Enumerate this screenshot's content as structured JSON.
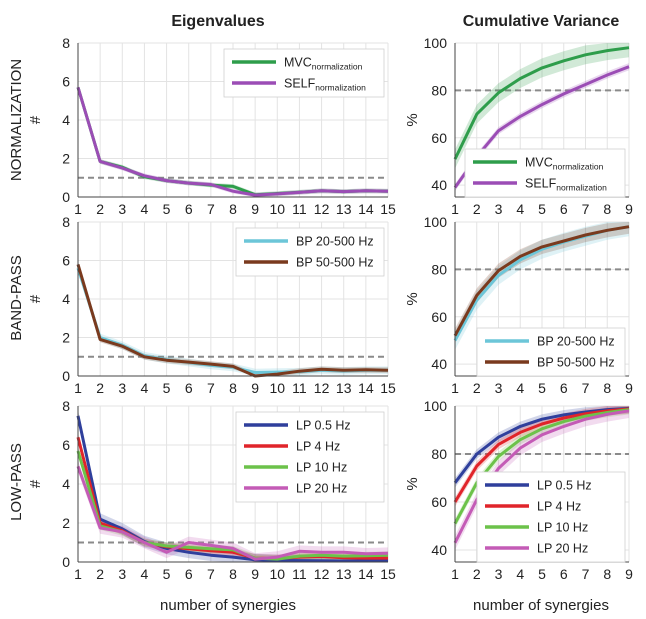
{
  "columns": {
    "left_title": "Eigenvalues",
    "right_title": "Cumulative Variance"
  },
  "rows": [
    "NORMALIZATION",
    "BAND-PASS",
    "LOW-PASS"
  ],
  "x_label": "number of synergies",
  "left_ylabel": "#",
  "right_ylabel": "%",
  "colors": {
    "mvc": "#2e9d4b",
    "self": "#9b4db5",
    "bp20": "#6cc6d8",
    "bp50": "#7a3a1e",
    "lp05": "#2f3f9c",
    "lp4": "#e0242a",
    "lp10": "#6cc24a",
    "lp20": "#c45bb6"
  },
  "chart_data": [
    {
      "type": "line",
      "panel": "eig-normalization",
      "row": "NORMALIZATION",
      "x": [
        1,
        2,
        3,
        4,
        5,
        6,
        7,
        8,
        9,
        10,
        11,
        12,
        13,
        14,
        15
      ],
      "xlim": [
        1,
        15
      ],
      "ylim": [
        0,
        8
      ],
      "yticks": [
        0,
        2,
        4,
        6,
        8
      ],
      "ylabel": "#",
      "threshold": 1,
      "series": [
        {
          "name": "MVC",
          "name_sub": "normalization",
          "color": "#2e9d4b",
          "spread": 0.12,
          "values": [
            5.7,
            1.85,
            1.55,
            1.05,
            0.85,
            0.72,
            0.62,
            0.55,
            0.12,
            0.18,
            0.25,
            0.32,
            0.28,
            0.32,
            0.3
          ]
        },
        {
          "name": "SELF",
          "name_sub": "normalization",
          "color": "#9b4db5",
          "spread": 0.12,
          "values": [
            5.7,
            1.85,
            1.5,
            1.1,
            0.85,
            0.72,
            0.65,
            0.3,
            0.1,
            0.16,
            0.24,
            0.32,
            0.28,
            0.32,
            0.3
          ]
        }
      ]
    },
    {
      "type": "line",
      "panel": "cum-normalization",
      "row": "NORMALIZATION",
      "x": [
        1,
        2,
        3,
        4,
        5,
        6,
        7,
        8,
        9
      ],
      "xlim": [
        1,
        9
      ],
      "ylim": [
        35,
        100
      ],
      "yticks": [
        40,
        60,
        80,
        100
      ],
      "ylabel": "%",
      "threshold": 80,
      "series": [
        {
          "name": "MVC",
          "name_sub": "normalization",
          "color": "#2e9d4b",
          "spread": 4,
          "values": [
            51,
            70,
            79,
            85,
            89.5,
            92.5,
            95,
            96.8,
            98
          ]
        },
        {
          "name": "SELF",
          "name_sub": "normalization",
          "color": "#9b4db5",
          "spread": 1.5,
          "values": [
            39,
            52,
            63,
            69,
            74,
            78.5,
            82.5,
            86.5,
            90
          ]
        }
      ]
    },
    {
      "type": "line",
      "panel": "eig-bandpass",
      "row": "BAND-PASS",
      "x": [
        1,
        2,
        3,
        4,
        5,
        6,
        7,
        8,
        9,
        10,
        11,
        12,
        13,
        14,
        15
      ],
      "xlim": [
        1,
        15
      ],
      "ylim": [
        0,
        8
      ],
      "yticks": [
        0,
        2,
        4,
        6,
        8
      ],
      "ylabel": "#",
      "threshold": 1,
      "series": [
        {
          "name": "BP 20-500 Hz",
          "color": "#6cc6d8",
          "spread": 0.2,
          "values": [
            5.6,
            2.0,
            1.6,
            1.05,
            0.85,
            0.7,
            0.55,
            0.45,
            0.18,
            0.2,
            0.22,
            0.3,
            0.26,
            0.3,
            0.3
          ]
        },
        {
          "name": "BP 50-500 Hz",
          "color": "#7a3a1e",
          "spread": 0.15,
          "values": [
            5.8,
            1.9,
            1.55,
            1.0,
            0.82,
            0.72,
            0.62,
            0.5,
            0.0,
            0.1,
            0.25,
            0.35,
            0.3,
            0.32,
            0.3
          ]
        }
      ]
    },
    {
      "type": "line",
      "panel": "cum-bandpass",
      "row": "BAND-PASS",
      "x": [
        1,
        2,
        3,
        4,
        5,
        6,
        7,
        8,
        9
      ],
      "xlim": [
        1,
        9
      ],
      "ylim": [
        35,
        100
      ],
      "yticks": [
        40,
        60,
        80,
        100
      ],
      "ylabel": "%",
      "threshold": 80,
      "series": [
        {
          "name": "BP 20-500 Hz",
          "color": "#6cc6d8",
          "spread": 4,
          "values": [
            50,
            67,
            77.5,
            84,
            88.5,
            91.5,
            94,
            96.5,
            98
          ]
        },
        {
          "name": "BP 50-500 Hz",
          "color": "#7a3a1e",
          "spread": 3,
          "values": [
            52,
            69,
            79.5,
            85.5,
            89.5,
            92,
            94.5,
            96.5,
            98
          ]
        }
      ]
    },
    {
      "type": "line",
      "panel": "eig-lowpass",
      "row": "LOW-PASS",
      "x": [
        1,
        2,
        3,
        4,
        5,
        6,
        7,
        8,
        9,
        10,
        11,
        12,
        13,
        14,
        15
      ],
      "xlim": [
        1,
        15
      ],
      "ylim": [
        0,
        8
      ],
      "yticks": [
        0,
        2,
        4,
        6,
        8
      ],
      "ylabel": "#",
      "threshold": 1,
      "series": [
        {
          "name": "LP 0.5 Hz",
          "color": "#2f3f9c",
          "spread": 0.3,
          "values": [
            7.5,
            2.2,
            1.7,
            1.05,
            0.7,
            0.5,
            0.35,
            0.25,
            0.12,
            0.08,
            0.07,
            0.06,
            0.05,
            0.05,
            0.05
          ]
        },
        {
          "name": "LP   4 Hz",
          "color": "#e0242a",
          "spread": 0.2,
          "values": [
            6.4,
            2.0,
            1.6,
            1.0,
            0.78,
            0.68,
            0.58,
            0.5,
            0.2,
            0.18,
            0.25,
            0.28,
            0.22,
            0.2,
            0.2
          ]
        },
        {
          "name": "LP  10 Hz",
          "color": "#6cc24a",
          "spread": 0.2,
          "values": [
            5.7,
            1.85,
            1.55,
            1.0,
            0.82,
            0.75,
            0.68,
            0.62,
            0.2,
            0.15,
            0.3,
            0.35,
            0.3,
            0.32,
            0.35
          ]
        },
        {
          "name": "LP  20 Hz",
          "color": "#c45bb6",
          "spread": 0.3,
          "values": [
            4.9,
            1.75,
            1.55,
            1.0,
            0.5,
            1.0,
            0.85,
            0.7,
            0.15,
            0.25,
            0.55,
            0.5,
            0.5,
            0.42,
            0.45
          ]
        }
      ]
    },
    {
      "type": "line",
      "panel": "cum-lowpass",
      "row": "LOW-PASS",
      "x": [
        1,
        2,
        3,
        4,
        5,
        6,
        7,
        8,
        9
      ],
      "xlim": [
        1,
        9
      ],
      "ylim": [
        35,
        100
      ],
      "yticks": [
        40,
        60,
        80,
        100
      ],
      "ylabel": "%",
      "threshold": 80,
      "series": [
        {
          "name": "LP 0.5 Hz",
          "color": "#2f3f9c",
          "spread": 2,
          "values": [
            68,
            80,
            87,
            91.5,
            94.5,
            96.3,
            97.5,
            98.5,
            99
          ]
        },
        {
          "name": "LP   4 Hz",
          "color": "#e0242a",
          "spread": 2,
          "values": [
            60,
            75,
            84,
            89,
            92.5,
            95,
            96.8,
            98,
            98.8
          ]
        },
        {
          "name": "LP  10 Hz",
          "color": "#6cc24a",
          "spread": 2,
          "values": [
            51,
            68,
            79,
            86,
            90.5,
            93.5,
            95.8,
            97.3,
            98.5
          ]
        },
        {
          "name": "LP  20 Hz",
          "color": "#c45bb6",
          "spread": 3,
          "values": [
            43,
            61,
            74,
            82.5,
            88,
            91.5,
            94.5,
            96.5,
            98
          ]
        }
      ]
    }
  ]
}
